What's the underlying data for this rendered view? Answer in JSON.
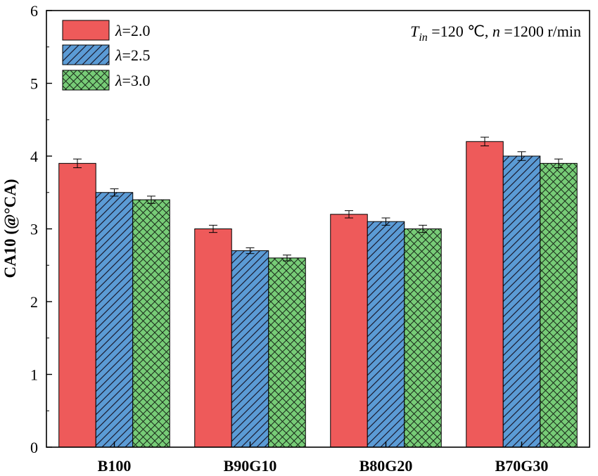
{
  "chart_data": {
    "type": "bar",
    "categories": [
      "B100",
      "B90G10",
      "B80G20",
      "B70G30"
    ],
    "series": [
      {
        "name": "λ=2.0",
        "lambda_value": "2.0",
        "values": [
          3.9,
          3.0,
          3.2,
          4.2
        ],
        "errors": [
          0.06,
          0.05,
          0.05,
          0.06
        ],
        "color": "#ee5a5a",
        "pattern": "solid"
      },
      {
        "name": "λ=2.5",
        "lambda_value": "2.5",
        "values": [
          3.5,
          2.7,
          3.1,
          4.0
        ],
        "errors": [
          0.05,
          0.04,
          0.05,
          0.06
        ],
        "color": "#5b9bd5",
        "pattern": "diagonal"
      },
      {
        "name": "λ=3.0",
        "lambda_value": "3.0",
        "values": [
          3.4,
          2.6,
          3.0,
          3.9
        ],
        "errors": [
          0.05,
          0.04,
          0.05,
          0.06
        ],
        "color": "#77cc77",
        "pattern": "crosshatch"
      }
    ],
    "ylabel": "CA10 (@°CA)",
    "xlabel": "",
    "ylim": [
      0,
      6
    ],
    "yticks": [
      "0",
      "1",
      "2",
      "3",
      "4",
      "5",
      "6"
    ],
    "annotation": {
      "t_symbol": "T",
      "t_subscript": "in",
      "t_value": " =120 ℃, ",
      "n_symbol": "n",
      "n_value": " =1200 r/min"
    },
    "legend_position": "top-left",
    "grid": false
  }
}
